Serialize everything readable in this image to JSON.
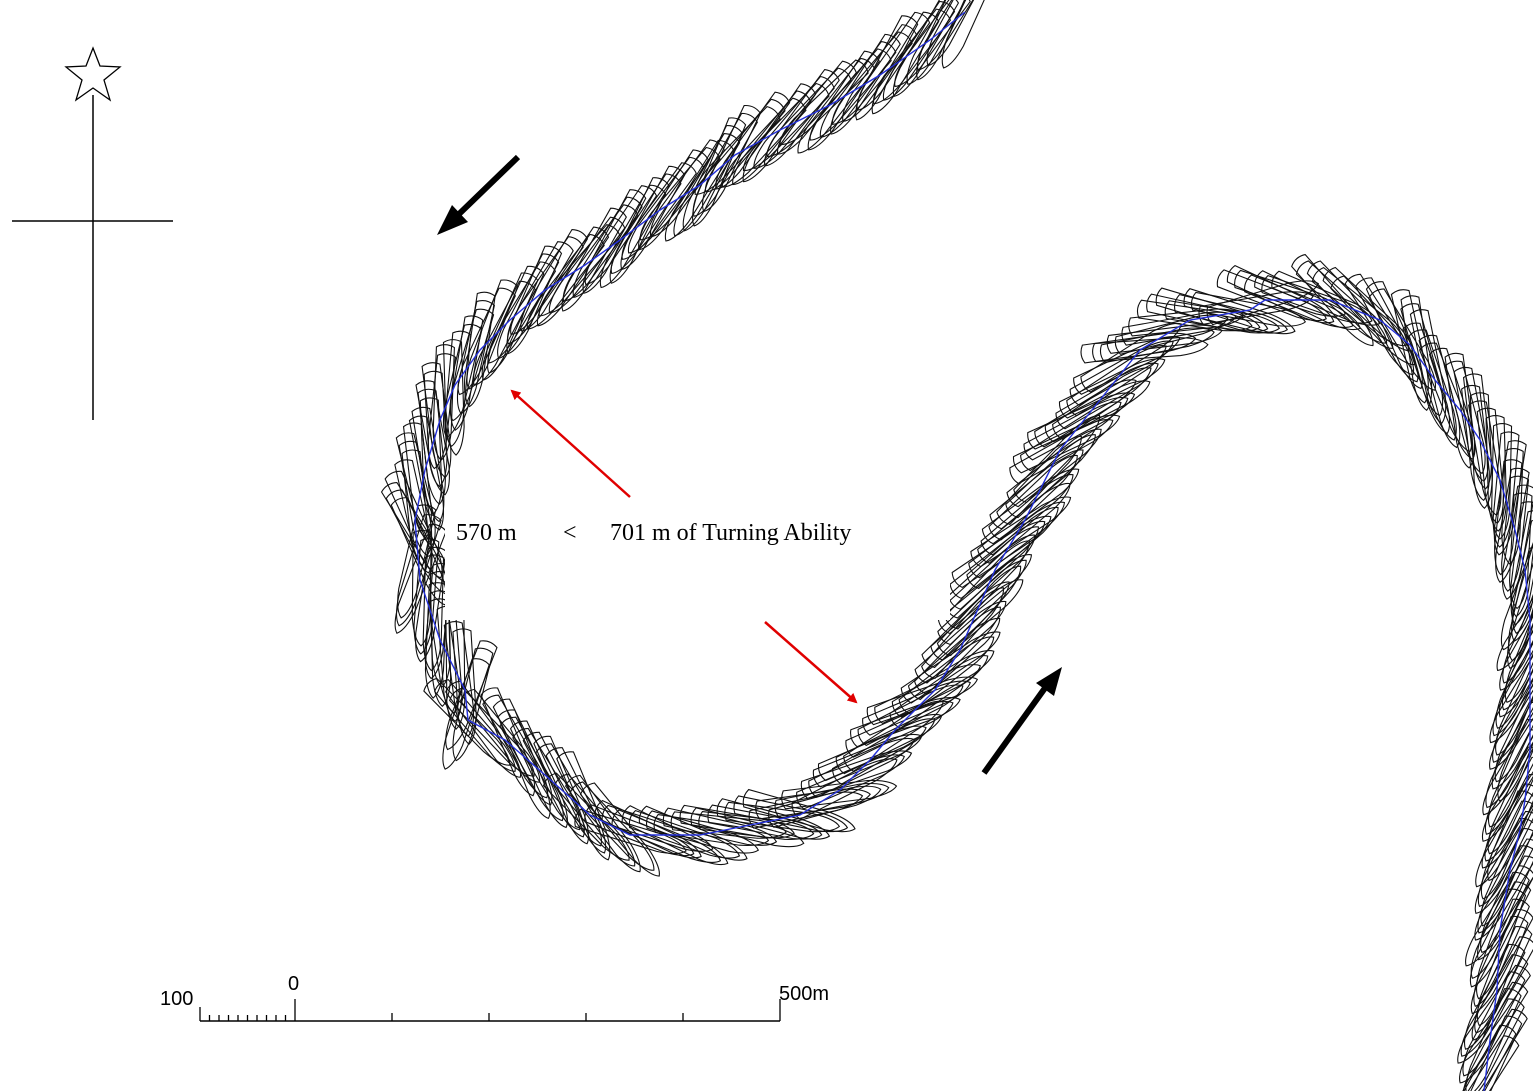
{
  "annotation": {
    "left_value": "570 m",
    "comparator": "<",
    "right_value": "701 m of Turning Ability"
  },
  "scale_bar": {
    "label_left": "100",
    "label_zero": "0",
    "label_right": "500m"
  },
  "colors": {
    "track": "#2430d8",
    "hull_outline": "#111111",
    "red_arrow": "#e00000",
    "black_arrow": "#000000"
  },
  "icons": {
    "north_marker": "star-outline-icon"
  }
}
